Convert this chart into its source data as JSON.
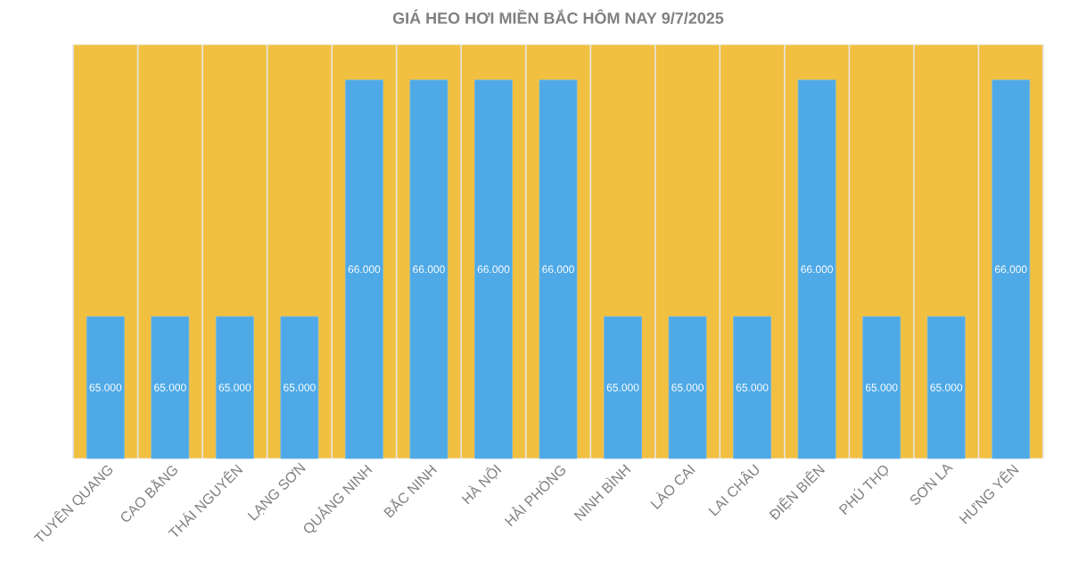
{
  "chart_data": {
    "type": "bar",
    "title": "GIÁ HEO HƠI MIỀN BẮC HÔM NAY 9/7/2025",
    "categories": [
      "TUYÊN QUANG",
      "CAO BẰNG",
      "THÁI NGUYÊN",
      "LẠNG SƠN",
      "QUẢNG NINH",
      "BẮC NINH",
      "HÀ NỘI",
      "HẢI PHÒNG",
      "NINH BÌNH",
      "LÀO CAI",
      "LAI CHÂU",
      "ĐIỆN BIÊN",
      "PHÚ THỌ",
      "SƠN LA",
      "HƯNG YÊN"
    ],
    "values": [
      65000,
      65000,
      65000,
      65000,
      66000,
      66000,
      66000,
      66000,
      65000,
      65000,
      65000,
      66000,
      65000,
      65000,
      66000
    ],
    "value_labels": [
      "65.000",
      "65.000",
      "65.000",
      "65.000",
      "66.000",
      "66.000",
      "66.000",
      "66.000",
      "65.000",
      "65.000",
      "65.000",
      "66.000",
      "65.000",
      "65.000",
      "66.000"
    ],
    "color": "#4ea9e6",
    "ylim": [
      64400,
      66150
    ],
    "grid": "x",
    "tick_labels": "x"
  }
}
